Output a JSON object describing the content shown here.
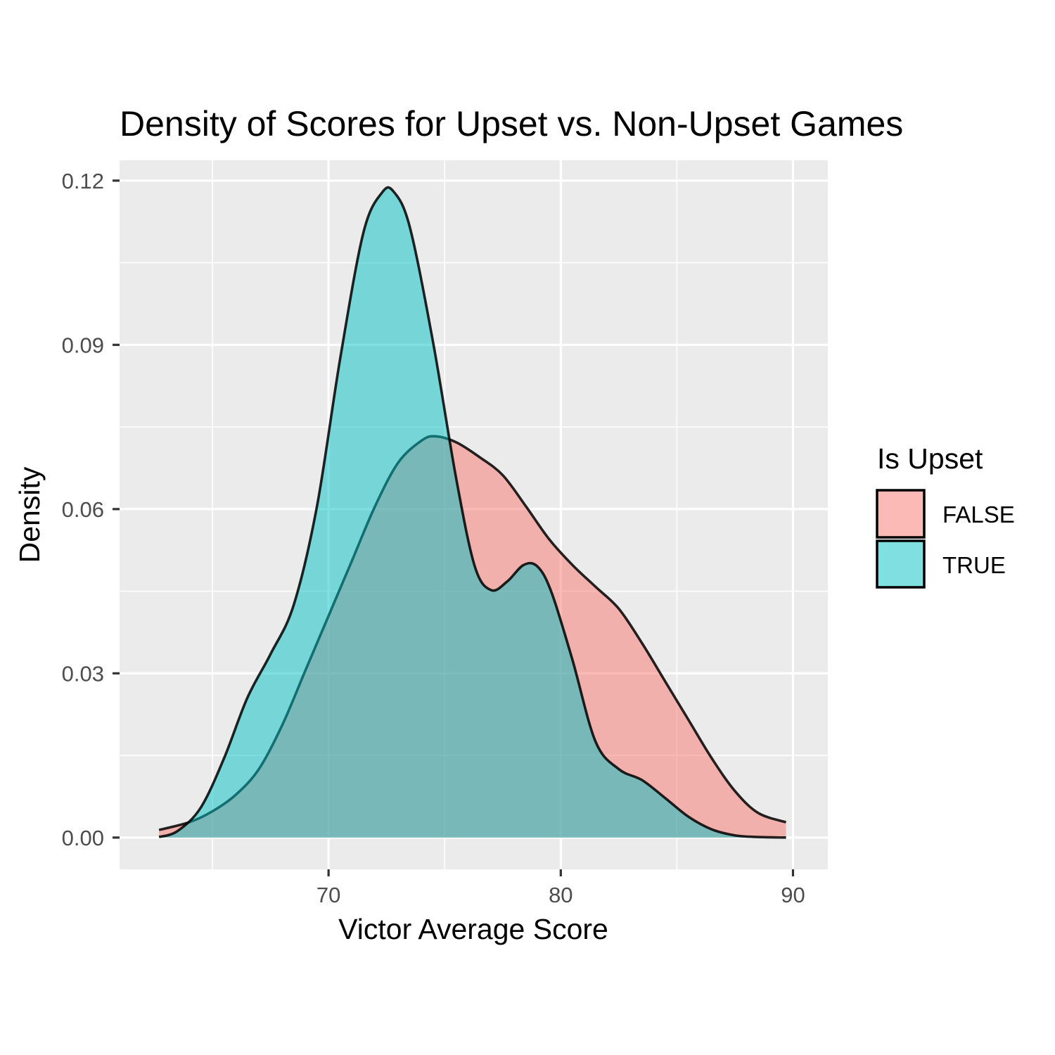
{
  "chart_data": {
    "type": "area",
    "title": "Density of Scores for Upset vs. Non-Upset Games",
    "xlabel": "Victor Average Score",
    "ylabel": "Density",
    "xlim": [
      61,
      91.5
    ],
    "ylim": [
      -0.0058,
      0.1237
    ],
    "x_ticks": [
      70,
      80,
      90
    ],
    "x_tick_labels": [
      "70",
      "80",
      "90"
    ],
    "x_minor_breaks": [
      65,
      75,
      85
    ],
    "y_ticks": [
      0,
      0.03,
      0.06,
      0.09,
      0.12
    ],
    "y_tick_labels": [
      "0.00",
      "0.03",
      "0.06",
      "0.09",
      "0.12"
    ],
    "y_minor_breaks": [
      0.015,
      0.045,
      0.075,
      0.105
    ],
    "grid": true,
    "legend": {
      "title": "Is Upset",
      "placement": "right",
      "entries": [
        "FALSE",
        "TRUE"
      ]
    },
    "series": [
      {
        "name": "FALSE",
        "color": "#F8766D",
        "x": [
          62.7,
          64,
          65,
          66,
          67,
          68,
          69,
          70,
          71,
          72,
          73,
          74,
          74.6,
          75.5,
          76.5,
          77.5,
          78.5,
          79.5,
          80.5,
          81.5,
          82.5,
          83.5,
          84.5,
          85.5,
          86.5,
          87.5,
          88.5,
          89.7
        ],
        "y": [
          0.0014,
          0.0028,
          0.0048,
          0.0078,
          0.0125,
          0.0205,
          0.0305,
          0.0405,
          0.0505,
          0.0605,
          0.0685,
          0.0725,
          0.0733,
          0.0722,
          0.0695,
          0.0662,
          0.0605,
          0.0545,
          0.0498,
          0.0458,
          0.0418,
          0.0355,
          0.0285,
          0.0215,
          0.0145,
          0.0085,
          0.0045,
          0.0028
        ]
      },
      {
        "name": "TRUE",
        "color": "#00BFC4",
        "x": [
          62.7,
          63.5,
          64.5,
          65.5,
          66.5,
          67.5,
          68.5,
          69.5,
          70.5,
          71.5,
          72.3,
          72.8,
          73.5,
          74.5,
          75.5,
          76.3,
          77,
          77.7,
          78.4,
          79,
          79.6,
          80.5,
          81.5,
          82.5,
          83.5,
          84.5,
          85.5,
          86.5,
          87.5,
          88.5,
          89.7
        ],
        "y": [
          0.0001,
          0.0012,
          0.0055,
          0.0145,
          0.0255,
          0.0335,
          0.0425,
          0.0605,
          0.0875,
          0.1105,
          0.1178,
          0.118,
          0.1115,
          0.0905,
          0.0655,
          0.0495,
          0.0452,
          0.0468,
          0.0498,
          0.0495,
          0.0448,
          0.0325,
          0.0175,
          0.0125,
          0.0105,
          0.0072,
          0.0038,
          0.0015,
          0.0004,
          0.0001,
          0
        ]
      }
    ]
  }
}
